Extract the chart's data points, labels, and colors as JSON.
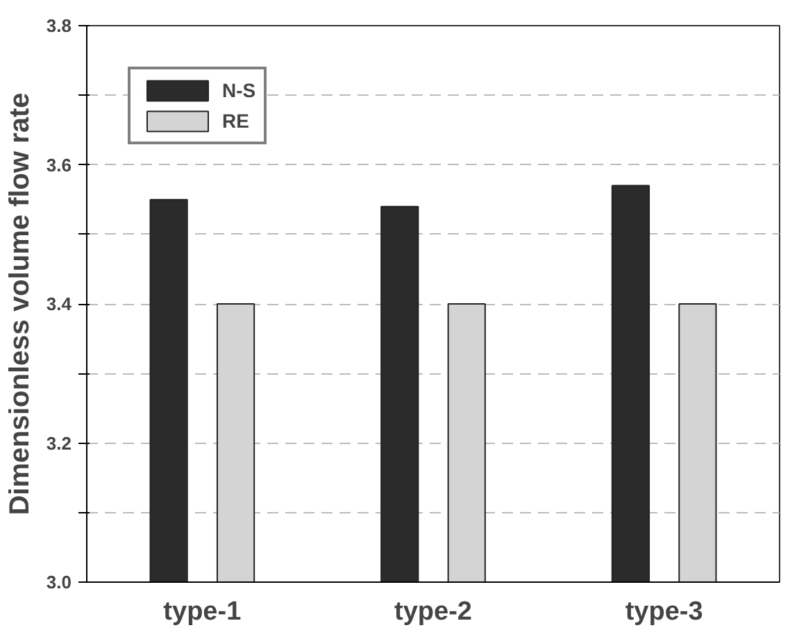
{
  "chart_data": {
    "type": "bar",
    "ylabel": "Dimensionless volume flow rate",
    "categories": [
      "type-1",
      "type-2",
      "type-3"
    ],
    "series": [
      {
        "name": "N-S",
        "color": "#2b2b2b",
        "values": [
          3.55,
          3.54,
          3.57
        ]
      },
      {
        "name": "RE",
        "color": "#d4d4d4",
        "values": [
          3.4,
          3.4,
          3.4
        ]
      }
    ],
    "ylim": [
      3.0,
      3.8
    ],
    "yticks": [
      {
        "value": 3.0,
        "label": "3.0"
      },
      {
        "value": 3.1,
        "label": null
      },
      3.2,
      {
        "value": 3.3,
        "label": null
      },
      3.4,
      {
        "value": 3.5,
        "label": null
      },
      3.6,
      {
        "value": 3.7,
        "label": null
      },
      3.8
    ],
    "grid": "y",
    "legend": "top left"
  }
}
